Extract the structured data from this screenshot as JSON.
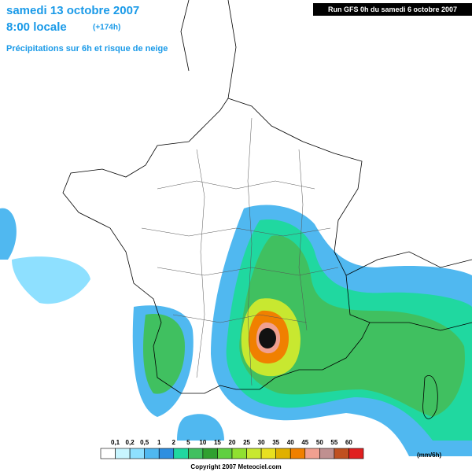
{
  "header": {
    "date": "samedi 13 octobre 2007",
    "time": "8:00 locale",
    "lead": "(+174h)",
    "subtitle": "Précipitations sur 6h et risque de neige",
    "run": "Run GFS 0h du samedi 6 octobre 2007"
  },
  "legend": {
    "colors": [
      "#ffffff",
      "#c8f5ff",
      "#8ee0ff",
      "#50b8f0",
      "#2f8fe0",
      "#20d8a0",
      "#40c060",
      "#30a030",
      "#60d040",
      "#90e030",
      "#c8e830",
      "#e8e020",
      "#e0b000",
      "#f08000",
      "#f0a090",
      "#c09090",
      "#c05020",
      "#e02020"
    ],
    "labels": [
      "0,1",
      "0,2",
      "0,5",
      "1",
      "2",
      "5",
      "10",
      "15",
      "20",
      "25",
      "30",
      "35",
      "40",
      "45",
      "50",
      "55",
      "60"
    ],
    "unit": "(mm/6h)"
  },
  "footer": {
    "copyright": "Copyright 2007 Meteociel.com"
  }
}
